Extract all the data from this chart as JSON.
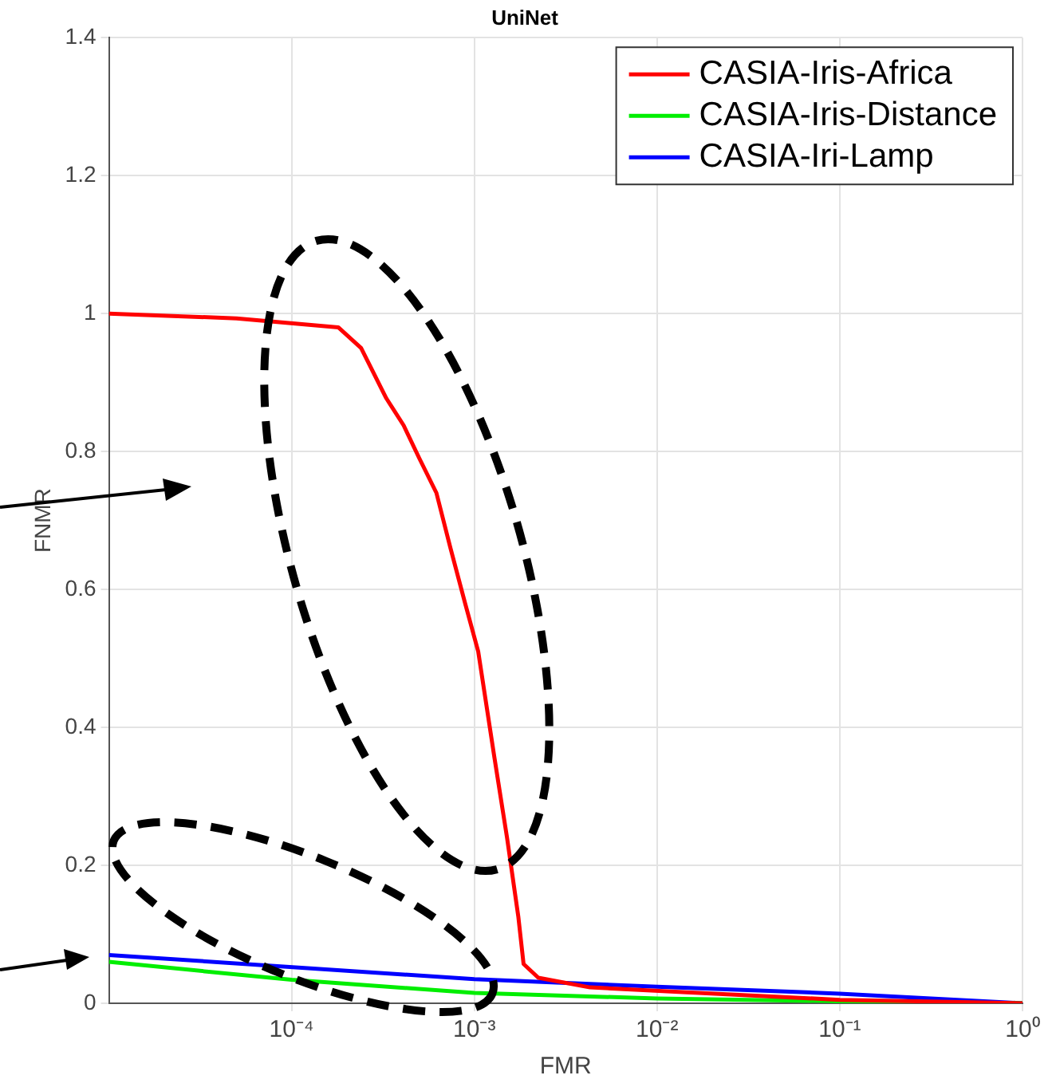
{
  "chart_data": {
    "type": "line",
    "title": "UniNet",
    "xlabel": "FMR",
    "ylabel": "FNMR",
    "log": "x",
    "xlim": [
      1e-05,
      1
    ],
    "xticks": [
      {
        "value": 0.0001,
        "label": "10⁻⁴"
      },
      {
        "value": 0.001,
        "label": "10⁻³"
      },
      {
        "value": 0.01,
        "label": "10⁻²"
      },
      {
        "value": 0.1,
        "label": "10⁻¹"
      },
      {
        "value": 1,
        "label": "10⁰"
      }
    ],
    "ylim": [
      0,
      1.4
    ],
    "yticks": [
      0,
      0.2,
      0.4,
      0.6,
      0.8,
      1,
      1.2,
      1.4
    ],
    "grid": true,
    "legend": "top right",
    "line_style": "solid",
    "marker": "none",
    "series": [
      {
        "name": "CASIA-Iris-Africa",
        "color": "#ff0000",
        "x": [
          1e-05,
          5e-05,
          0.00018,
          0.00024,
          0.00033,
          0.00041,
          0.0005,
          0.00062,
          0.00074,
          0.00089,
          0.00105,
          0.00129,
          0.00151,
          0.00174,
          0.00186,
          0.00224,
          0.0043,
          0.0145,
          0.1,
          1
        ],
        "values": [
          1,
          0.993,
          0.98,
          0.95,
          0.877,
          0.838,
          0.79,
          0.74,
          0.66,
          0.58,
          0.51,
          0.355,
          0.24,
          0.126,
          0.057,
          0.037,
          0.023,
          0.016,
          0.005,
          0
        ]
      },
      {
        "name": "CASIA-Iris-Distance",
        "color": "#00ee00",
        "x": [
          1e-05,
          0.0001,
          0.001,
          0.01,
          0.1,
          1
        ],
        "values": [
          0.06,
          0.034,
          0.015,
          0.007,
          0.003,
          0
        ]
      },
      {
        "name": "CASIA-Iri-Lamp",
        "color": "#0000ff",
        "x": [
          1e-05,
          0.001,
          0.01,
          0.1,
          1
        ],
        "values": [
          0.07,
          0.035,
          0.024,
          0.014,
          0
        ]
      }
    ]
  }
}
